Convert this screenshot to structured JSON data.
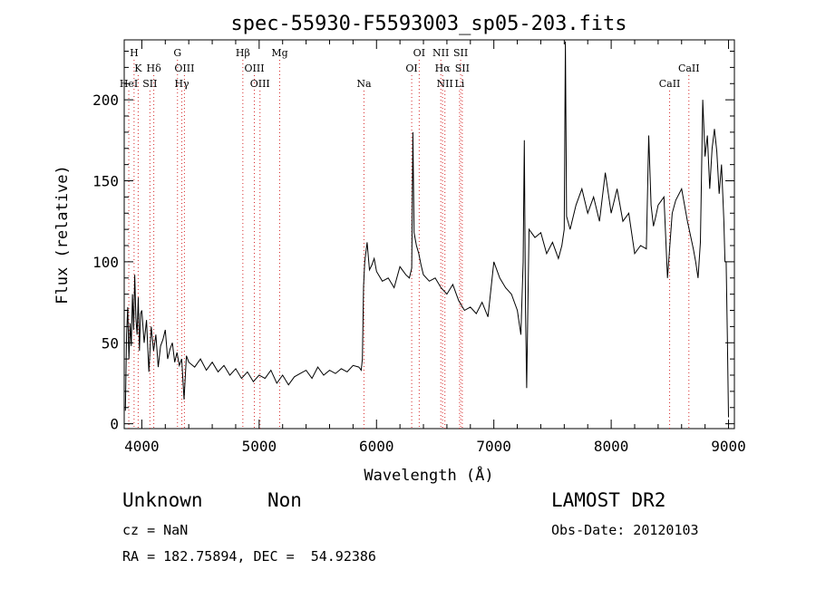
{
  "chart_data": {
    "type": "line",
    "title": "spec-55930-F5593003_sp05-203.fits",
    "xlabel": "Wavelength (Å)",
    "ylabel": "Flux (relative)",
    "xlim": [
      3850,
      9050
    ],
    "ylim": [
      -3,
      237
    ],
    "x_ticks": [
      4000,
      5000,
      6000,
      7000,
      8000,
      9000
    ],
    "y_ticks": [
      0,
      50,
      100,
      150,
      200
    ],
    "grid": false,
    "series": [
      {
        "x": [
          3860,
          3870,
          3880,
          3890,
          3900,
          3910,
          3920,
          3930,
          3940,
          3950,
          3960,
          3970,
          3980,
          3990,
          4000,
          4020,
          4040,
          4060,
          4080,
          4100,
          4120,
          4140,
          4160,
          4180,
          4200,
          4220,
          4240,
          4260,
          4280,
          4300,
          4320,
          4340,
          4360,
          4380,
          4400,
          4450,
          4500,
          4550,
          4600,
          4650,
          4700,
          4750,
          4800,
          4850,
          4900,
          4950,
          5000,
          5050,
          5100,
          5150,
          5200,
          5250,
          5300,
          5350,
          5400,
          5450,
          5500,
          5550,
          5600,
          5650,
          5700,
          5750,
          5800,
          5850,
          5870,
          5880,
          5890,
          5900,
          5920,
          5940,
          5960,
          5980,
          6000,
          6050,
          6100,
          6150,
          6200,
          6250,
          6280,
          6300,
          6310,
          6320,
          6340,
          6360,
          6380,
          6400,
          6450,
          6500,
          6550,
          6600,
          6650,
          6700,
          6750,
          6800,
          6850,
          6900,
          6950,
          7000,
          7050,
          7100,
          7150,
          7200,
          7230,
          7250,
          7260,
          7270,
          7280,
          7300,
          7350,
          7400,
          7450,
          7500,
          7550,
          7580,
          7600,
          7610,
          7620,
          7650,
          7700,
          7750,
          7800,
          7850,
          7900,
          7950,
          8000,
          8050,
          8100,
          8150,
          8200,
          8250,
          8300,
          8320,
          8340,
          8360,
          8380,
          8400,
          8450,
          8480,
          8500,
          8520,
          8550,
          8600,
          8650,
          8700,
          8720,
          8740,
          8760,
          8780,
          8800,
          8820,
          8840,
          8860,
          8880,
          8900,
          8920,
          8940,
          8960,
          8970,
          8980,
          8990,
          9000
        ],
        "y": [
          8,
          55,
          72,
          40,
          62,
          48,
          80,
          58,
          92,
          65,
          55,
          78,
          45,
          68,
          70,
          50,
          64,
          32,
          60,
          45,
          55,
          35,
          48,
          52,
          58,
          40,
          46,
          50,
          38,
          44,
          36,
          40,
          15,
          42,
          38,
          35,
          40,
          33,
          38,
          32,
          36,
          30,
          34,
          28,
          32,
          26,
          30,
          28,
          33,
          25,
          30,
          24,
          29,
          31,
          33,
          28,
          35,
          30,
          33,
          31,
          34,
          32,
          36,
          35,
          33,
          40,
          85,
          100,
          112,
          95,
          98,
          102,
          94,
          88,
          90,
          84,
          97,
          92,
          90,
          96,
          180,
          118,
          110,
          105,
          98,
          92,
          88,
          90,
          84,
          80,
          86,
          76,
          70,
          72,
          68,
          75,
          66,
          100,
          90,
          84,
          80,
          70,
          55,
          100,
          175,
          70,
          22,
          120,
          115,
          118,
          105,
          112,
          102,
          110,
          120,
          236,
          128,
          120,
          135,
          145,
          130,
          140,
          125,
          155,
          130,
          145,
          125,
          130,
          105,
          110,
          108,
          178,
          135,
          122,
          128,
          135,
          140,
          90,
          110,
          130,
          138,
          145,
          125,
          108,
          100,
          90,
          112,
          200,
          165,
          178,
          145,
          170,
          182,
          168,
          142,
          160,
          125,
          100,
          100,
          55,
          4
        ]
      }
    ],
    "spectral_lines": [
      {
        "label": "H",
        "x": 3934,
        "row": 1
      },
      {
        "label": "K",
        "x": 3969,
        "row": 2
      },
      {
        "label": "HeI",
        "x": 3889,
        "row": 3
      },
      {
        "label": "Hδ",
        "x": 4102,
        "row": 2
      },
      {
        "label": "SII",
        "x": 4069,
        "row": 3
      },
      {
        "label": "G",
        "x": 4304,
        "row": 1
      },
      {
        "label": "OIII",
        "x": 4363,
        "row": 2
      },
      {
        "label": "Hγ",
        "x": 4341,
        "row": 3
      },
      {
        "label": "Hβ",
        "x": 4861,
        "row": 1
      },
      {
        "label": "OIII",
        "x": 4959,
        "row": 2
      },
      {
        "label": "OIII",
        "x": 5007,
        "row": 3
      },
      {
        "label": "Mg",
        "x": 5175,
        "row": 1
      },
      {
        "label": "Na",
        "x": 5893,
        "row": 3
      },
      {
        "label": "OI",
        "x": 6364,
        "row": 1
      },
      {
        "label": "OI",
        "x": 6300,
        "row": 2
      },
      {
        "label": "NII",
        "x": 6548,
        "row": 1
      },
      {
        "label": "SII",
        "x": 6717,
        "row": 1
      },
      {
        "label": "Hα",
        "x": 6563,
        "row": 2
      },
      {
        "label": "SII",
        "x": 6731,
        "row": 2
      },
      {
        "label": "NII",
        "x": 6583,
        "row": 3
      },
      {
        "label": "Li",
        "x": 6708,
        "row": 3
      },
      {
        "label": "CaII",
        "x": 8662,
        "row": 2
      },
      {
        "label": "CaII",
        "x": 8498,
        "row": 3
      }
    ]
  },
  "info": {
    "class_text": "Unknown",
    "subclass_text": "Non",
    "survey_text": "LAMOST DR2",
    "cz_text": "cz = NaN",
    "obs_date_text": "Obs-Date: 20120103",
    "coords_text": "RA = 182.75894, DEC =  54.92386"
  }
}
